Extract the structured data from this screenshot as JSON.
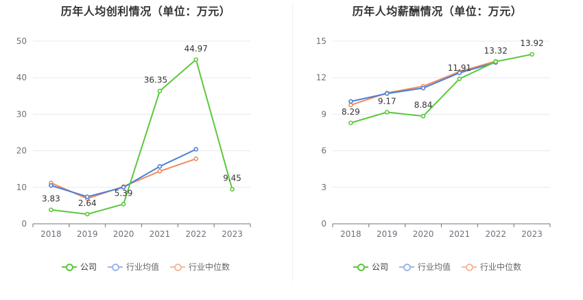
{
  "chart_data": [
    {
      "type": "line",
      "title": "历年人均创利情况（单位：万元）",
      "categories": [
        "2018",
        "2019",
        "2020",
        "2021",
        "2022",
        "2023"
      ],
      "ylim": [
        0,
        50
      ],
      "yticks": [
        "0",
        "10",
        "20",
        "30",
        "40",
        "50"
      ],
      "series": [
        {
          "name": "公司",
          "color": "#5ac73b",
          "values": [
            3.83,
            2.64,
            5.39,
            36.35,
            44.97,
            9.45
          ],
          "labels": [
            "3.83",
            "2.64",
            "5.39",
            "36.35",
            "44.97",
            "9.45"
          ]
        },
        {
          "name": "行业均值",
          "color": "#4a7fd6",
          "values": [
            10.5,
            7.4,
            10.0,
            15.7,
            20.4,
            null
          ]
        },
        {
          "name": "行业中位数",
          "color": "#ef8a5e",
          "values": [
            11.2,
            6.9,
            10.2,
            14.4,
            17.8,
            null
          ]
        }
      ],
      "legend": {
        "items": [
          "公司",
          "行业均值",
          "行业中位数"
        ]
      }
    },
    {
      "type": "line",
      "title": "历年人均薪酬情况（单位：万元）",
      "categories": [
        "2018",
        "2019",
        "2020",
        "2021",
        "2022",
        "2023"
      ],
      "ylim": [
        0,
        15
      ],
      "yticks": [
        "0",
        "3",
        "6",
        "9",
        "12",
        "15"
      ],
      "series": [
        {
          "name": "公司",
          "color": "#5ac73b",
          "values": [
            8.29,
            9.17,
            8.84,
            11.91,
            13.32,
            13.92
          ],
          "labels": [
            "8.29",
            "9.17",
            "8.84",
            "11.91",
            "13.32",
            "13.92"
          ]
        },
        {
          "name": "行业均值",
          "color": "#4a7fd6",
          "values": [
            10.05,
            10.7,
            11.15,
            12.4,
            13.25,
            null
          ]
        },
        {
          "name": "行业中位数",
          "color": "#ef8a5e",
          "values": [
            9.75,
            10.75,
            11.3,
            12.5,
            13.35,
            null
          ]
        }
      ],
      "legend": {
        "items": [
          "公司",
          "行业均值",
          "行业中位数"
        ]
      }
    }
  ]
}
